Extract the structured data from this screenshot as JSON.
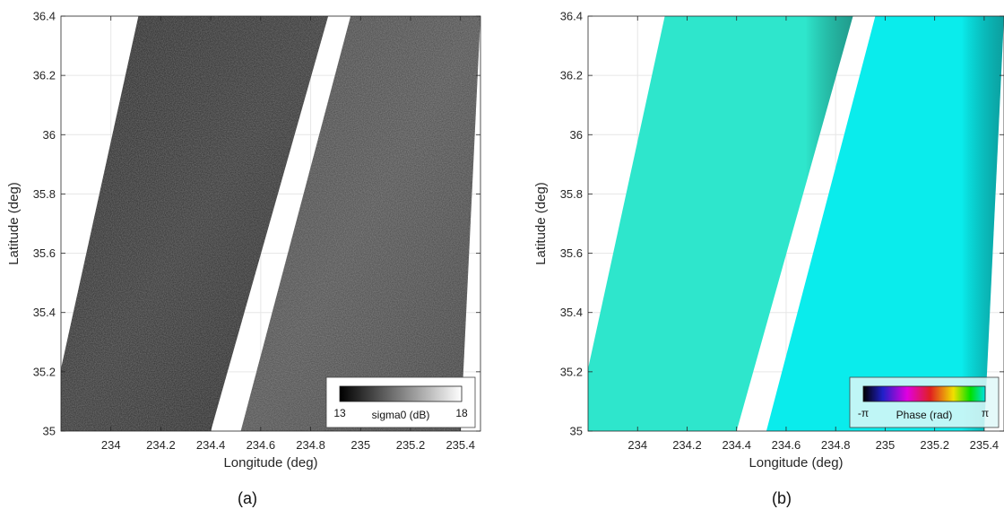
{
  "chart_data": [
    {
      "type": "heatmap",
      "panel": "a",
      "caption": "(a)",
      "xlabel": "Longitude (deg)",
      "ylabel": "Latitude (deg)",
      "xlim": [
        233.8,
        235.48
      ],
      "ylim": [
        35.0,
        36.4
      ],
      "xticks": [
        234,
        234.2,
        234.4,
        234.6,
        234.8,
        235,
        235.2,
        235.4
      ],
      "yticks": [
        35,
        35.2,
        35.4,
        35.6,
        35.8,
        36,
        36.2,
        36.4
      ],
      "xtick_labels": [
        "234",
        "234.2",
        "234.4",
        "234.6",
        "234.8",
        "235",
        "235.2",
        "235.4"
      ],
      "ytick_labels": [
        "35",
        "35.2",
        "35.4",
        "35.6",
        "35.8",
        "36",
        "36.2",
        "36.4"
      ],
      "grid": true,
      "swaths": [
        {
          "bottom_lon": [
            233.8,
            234.4
          ],
          "top_lon": [
            234.11,
            234.87
          ],
          "left_edge_at_ylim0": 35.21,
          "mean_value": 14.2
        },
        {
          "bottom_lon": [
            234.52,
            235.4
          ],
          "top_lon": [
            234.96,
            235.48
          ],
          "mean_value": 15.4
        }
      ],
      "colorbar": {
        "label": "sigma0 (dB)",
        "min_label": "13",
        "max_label": "18",
        "min": 13,
        "max": 18,
        "colormap": "gray",
        "location": "bottom-right"
      }
    },
    {
      "type": "heatmap",
      "panel": "b",
      "caption": "(b)",
      "xlabel": "Longitude (deg)",
      "ylabel": "Latitude (deg)",
      "xlim": [
        233.8,
        235.48
      ],
      "ylim": [
        35.0,
        36.4
      ],
      "xticks": [
        234,
        234.2,
        234.4,
        234.6,
        234.8,
        235,
        235.2,
        235.4
      ],
      "yticks": [
        35,
        35.2,
        35.4,
        35.6,
        35.8,
        36,
        36.2,
        36.4
      ],
      "xtick_labels": [
        "234",
        "234.2",
        "234.4",
        "234.6",
        "234.8",
        "235",
        "235.2",
        "235.4"
      ],
      "ytick_labels": [
        "35",
        "35.2",
        "35.4",
        "35.6",
        "35.8",
        "36",
        "36.2",
        "36.4"
      ],
      "grid": true,
      "swaths": [
        {
          "bottom_lon": [
            233.8,
            234.4
          ],
          "top_lon": [
            234.11,
            234.87
          ],
          "left_edge_at_ylim0": 35.21,
          "color": "#2ee6cc"
        },
        {
          "bottom_lon": [
            234.52,
            235.4
          ],
          "top_lon": [
            234.96,
            235.48
          ],
          "color": "#0aecec"
        }
      ],
      "colorbar": {
        "label": "Phase (rad)",
        "min_label": "-π",
        "max_label": "π",
        "colormap": "cyclic phase",
        "location": "bottom-right"
      }
    }
  ],
  "colors": {
    "axis": "#262626",
    "grid": "#e6e6e6",
    "swath_a1": "#2c2c2c",
    "swath_a2": "#5c5c5c",
    "swath_b1": "#2ee6cc",
    "swath_b2": "#0aecec"
  }
}
